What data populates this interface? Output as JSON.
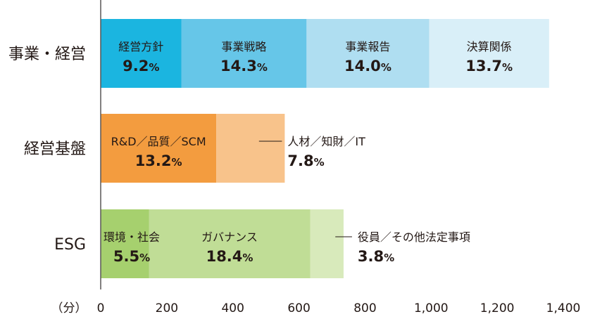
{
  "chart_data": {
    "type": "bar",
    "orientation": "horizontal",
    "stacked": true,
    "xlabel": "（分）",
    "xlim": [
      0,
      1400
    ],
    "xticks": [
      "0",
      "200",
      "400",
      "600",
      "800",
      "1,000",
      "1,200",
      "1,400"
    ],
    "xtick_values": [
      0,
      200,
      400,
      600,
      800,
      1000,
      1200,
      1400
    ],
    "grid": false,
    "categories": [
      "事業・経営",
      "経営基盤",
      "ESG"
    ],
    "bars": [
      {
        "category": "事業・経営",
        "segments": [
          {
            "label": "経営方針",
            "percent": "9.2",
            "value": 244,
            "color": "#1bb5e0",
            "label_position": "inside"
          },
          {
            "label": "事業戦略",
            "percent": "14.3",
            "value": 379,
            "color": "#66c6e8",
            "label_position": "inside"
          },
          {
            "label": "事業報告",
            "percent": "14.0",
            "value": 371,
            "color": "#afdef1",
            "label_position": "inside"
          },
          {
            "label": "決算関係",
            "percent": "13.7",
            "value": 363,
            "color": "#d9eff8",
            "label_position": "inside"
          }
        ]
      },
      {
        "category": "経営基盤",
        "segments": [
          {
            "label": "R&D／品質／SCM",
            "percent": "13.2",
            "value": 350,
            "color": "#f39c3f",
            "label_position": "inside"
          },
          {
            "label": "人材／知財／IT",
            "percent": "7.8",
            "value": 207,
            "color": "#f8c38b",
            "label_position": "outside"
          }
        ]
      },
      {
        "category": "ESG",
        "segments": [
          {
            "label": "環境・社会",
            "percent": "5.5",
            "value": 146,
            "color": "#a6d06e",
            "label_position": "inside"
          },
          {
            "label": "ガバナンス",
            "percent": "18.4",
            "value": 488,
            "color": "#c0dd96",
            "label_position": "inside"
          },
          {
            "label": "役員／その他法定事項",
            "percent": "3.8",
            "value": 101,
            "color": "#d8eabb",
            "label_position": "outside"
          }
        ]
      }
    ],
    "percent_suffix": "%"
  }
}
